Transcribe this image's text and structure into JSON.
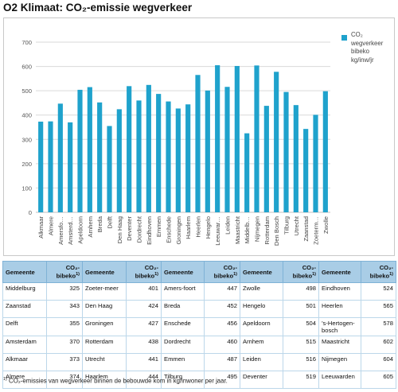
{
  "title": "O2 Klimaat: CO₂-emissie wegverkeer",
  "chart_data": {
    "type": "bar",
    "categories": [
      "Alkmaar",
      "Almere",
      "Amersfo…",
      "Amsterd…",
      "Apeldoorn",
      "Arnhem",
      "Breda",
      "Delft",
      "Den Haag",
      "Deventer",
      "Dordrecht",
      "Eindhoven",
      "Emmen",
      "Enschede",
      "Groningen",
      "Haarlem",
      "Heerlen",
      "Hengelo",
      "Leeuwar…",
      "Leiden",
      "Maastricht",
      "Middelb…",
      "Nijmegen",
      "Rotterdam",
      "Den Bosch",
      "Tilburg",
      "Utrecht",
      "Zaanstad",
      "Zoeterm…",
      "Zwolle"
    ],
    "values": [
      373,
      374,
      447,
      370,
      504,
      515,
      452,
      355,
      424,
      519,
      460,
      524,
      487,
      456,
      427,
      444,
      565,
      501,
      605,
      516,
      602,
      325,
      604,
      438,
      578,
      495,
      441,
      343,
      401,
      498
    ],
    "series": [
      {
        "name": "CO₂ wegverkeer bibeko kg/inw/jr"
      }
    ],
    "yticks": [
      "0",
      "100",
      "200",
      "300",
      "400",
      "500",
      "600",
      "700"
    ],
    "ylim": [
      0,
      700
    ],
    "grid": true,
    "legend": "right",
    "colors": {
      "bar": "#1fa2cc",
      "grid": "#d9d9d9",
      "header": "#a9cde6"
    }
  },
  "legend": {
    "line1": "CO₂",
    "line2": "wegverkeer",
    "line3": "bibeko",
    "line4": "kg/inw/jr"
  },
  "table": {
    "headers": {
      "gemeente": "Gemeente",
      "co2": "CO₂-",
      "bibeko": "bibeko",
      "sup": "1)"
    },
    "rows": [
      [
        {
          "n": "Middelburg",
          "v": "325"
        },
        {
          "n": "Zoeter-meer",
          "v": "401"
        },
        {
          "n": "Amers-foort",
          "v": "447"
        },
        {
          "n": "Zwolle",
          "v": "498"
        },
        {
          "n": "Eindhoven",
          "v": "524"
        }
      ],
      [
        {
          "n": "Zaanstad",
          "v": "343"
        },
        {
          "n": "Den Haag",
          "v": "424"
        },
        {
          "n": "Breda",
          "v": "452"
        },
        {
          "n": "Hengelo",
          "v": "501"
        },
        {
          "n": "Heerlen",
          "v": "565"
        }
      ],
      [
        {
          "n": "Delft",
          "v": "355"
        },
        {
          "n": "Groningen",
          "v": "427"
        },
        {
          "n": "Enschede",
          "v": "456"
        },
        {
          "n": "Apeldoorn",
          "v": "504"
        },
        {
          "n": "’s-Hertogen-bosch",
          "v": "578"
        }
      ],
      [
        {
          "n": "Amsterdam",
          "v": "370"
        },
        {
          "n": "Rotterdam",
          "v": "438"
        },
        {
          "n": "Dordrecht",
          "v": "460"
        },
        {
          "n": "Arnhem",
          "v": "515"
        },
        {
          "n": "Maastricht",
          "v": "602"
        }
      ],
      [
        {
          "n": "Alkmaar",
          "v": "373"
        },
        {
          "n": "Utrecht",
          "v": "441"
        },
        {
          "n": "Emmen",
          "v": "487"
        },
        {
          "n": "Leiden",
          "v": "516"
        },
        {
          "n": "Nijmegen",
          "v": "604"
        }
      ],
      [
        {
          "n": "Almere",
          "v": "374"
        },
        {
          "n": "Haarlem",
          "v": "444"
        },
        {
          "n": "Tilburg",
          "v": "495"
        },
        {
          "n": "Deventer",
          "v": "519"
        },
        {
          "n": "Leeuwarden",
          "v": "605"
        }
      ]
    ]
  },
  "footnote": {
    "sup": "1)",
    "text": " CO₂-emissies van wegverkeer binnen de bebouwde kom in kg/inwoner per jaar."
  }
}
